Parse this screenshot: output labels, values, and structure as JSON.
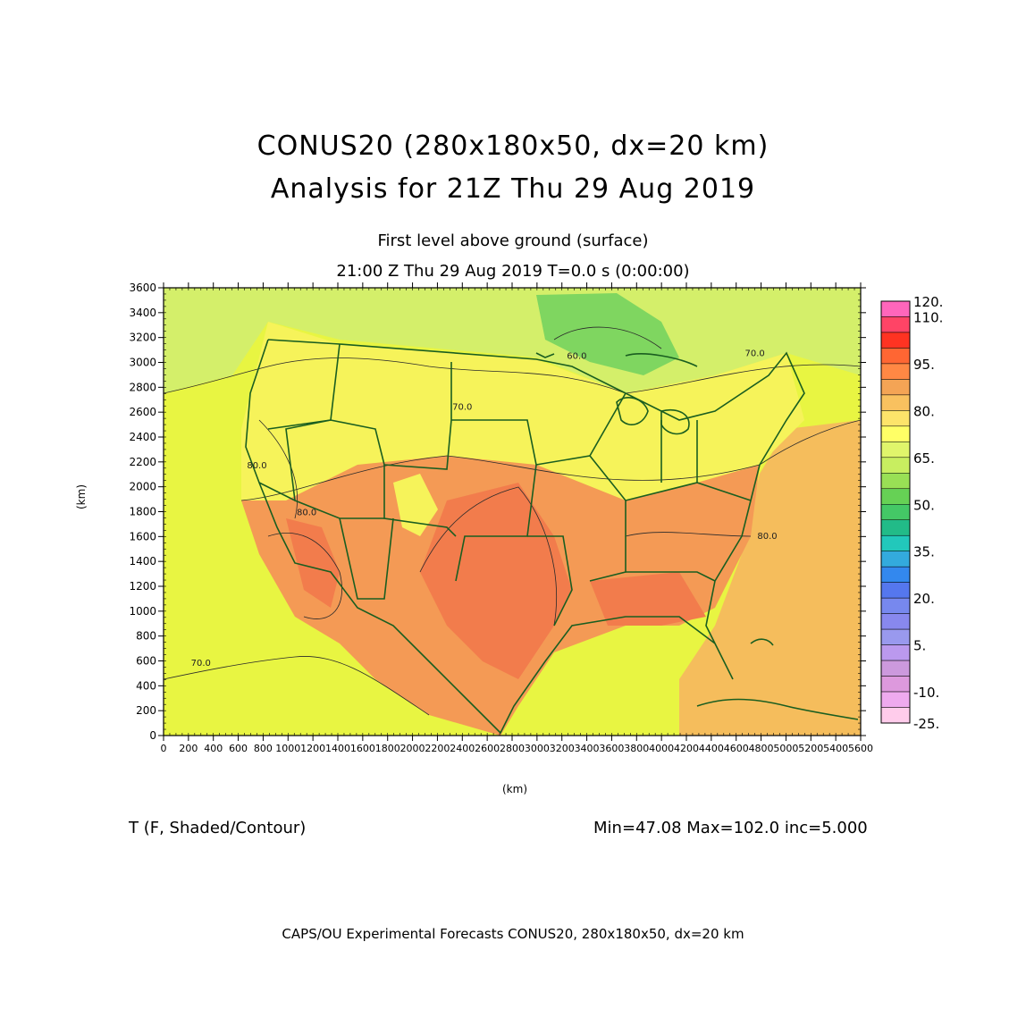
{
  "header": {
    "title_line1": "CONUS20 (280x180x50, dx=20 km)",
    "title_line2": "Analysis for 21Z Thu 29 Aug 2019",
    "subtitle_line1": "First level above ground (surface)",
    "subtitle_line2": "21:00 Z Thu 29 Aug 2019   T=0.0 s (0:00:00)"
  },
  "axes": {
    "x_unit": "(km)",
    "y_unit": "(km)",
    "x_ticks": [
      0,
      200,
      400,
      600,
      800,
      1000,
      1200,
      1400,
      1600,
      1800,
      2000,
      2200,
      2400,
      2600,
      2800,
      3000,
      3200,
      3400,
      3600,
      3800,
      4000,
      4200,
      4400,
      4600,
      4800,
      5000,
      5200,
      5400,
      5600
    ],
    "y_ticks": [
      0,
      200,
      400,
      600,
      800,
      1000,
      1200,
      1400,
      1600,
      1800,
      2000,
      2200,
      2400,
      2600,
      2800,
      3000,
      3200,
      3400,
      3600
    ],
    "x_range": [
      0,
      5600
    ],
    "y_range": [
      0,
      3600
    ]
  },
  "contour_labels": [
    {
      "text": "70.0",
      "x": 300,
      "y": 560
    },
    {
      "text": "60.0",
      "x": 3320,
      "y": 3030
    },
    {
      "text": "70.0",
      "x": 2400,
      "y": 2620
    },
    {
      "text": "70.0",
      "x": 4750,
      "y": 3050
    },
    {
      "text": "80.0",
      "x": 4850,
      "y": 1580
    },
    {
      "text": "80.0",
      "x": 1150,
      "y": 1770
    },
    {
      "text": "80.0",
      "x": 750,
      "y": 2150
    }
  ],
  "legend": {
    "labels": [
      "120.",
      "110.",
      "95.",
      "80.",
      "65.",
      "50.",
      "35.",
      "20.",
      "5.",
      "-10.",
      "-25."
    ],
    "colors": [
      "#ff66bb",
      "#ff4466",
      "#ff3322",
      "#ff6633",
      "#ff8844",
      "#f4a455",
      "#f9c15f",
      "#fde46a",
      "#ffff66",
      "#e0f56b",
      "#c8ee60",
      "#99e055",
      "#66d155",
      "#44c866",
      "#22bb88",
      "#22c8bb",
      "#33aadd",
      "#3388ee",
      "#5577ee",
      "#7788ee",
      "#8888ee",
      "#9999ee",
      "#bb99ee",
      "#cc99dd",
      "#dd99dd",
      "#eeaaee",
      "#ffcceb"
    ]
  },
  "field_colors": {
    "ocean_west": "#e8f542",
    "ocean_east": "#f5bd5c",
    "canada": "#d4ef6a",
    "canada_green": "#7fd660",
    "north_us": "#f6f35a",
    "south_us": "#f49a55",
    "hot": "#f27c4c",
    "border": "#1a5e20"
  },
  "footer": {
    "variable": "T (F, Shaded/Contour)",
    "stats": "Min=47.08 Max=102.0 inc=5.000",
    "credit": "CAPS/OU Experimental Forecasts  CONUS20, 280x180x50, dx=20 km"
  }
}
